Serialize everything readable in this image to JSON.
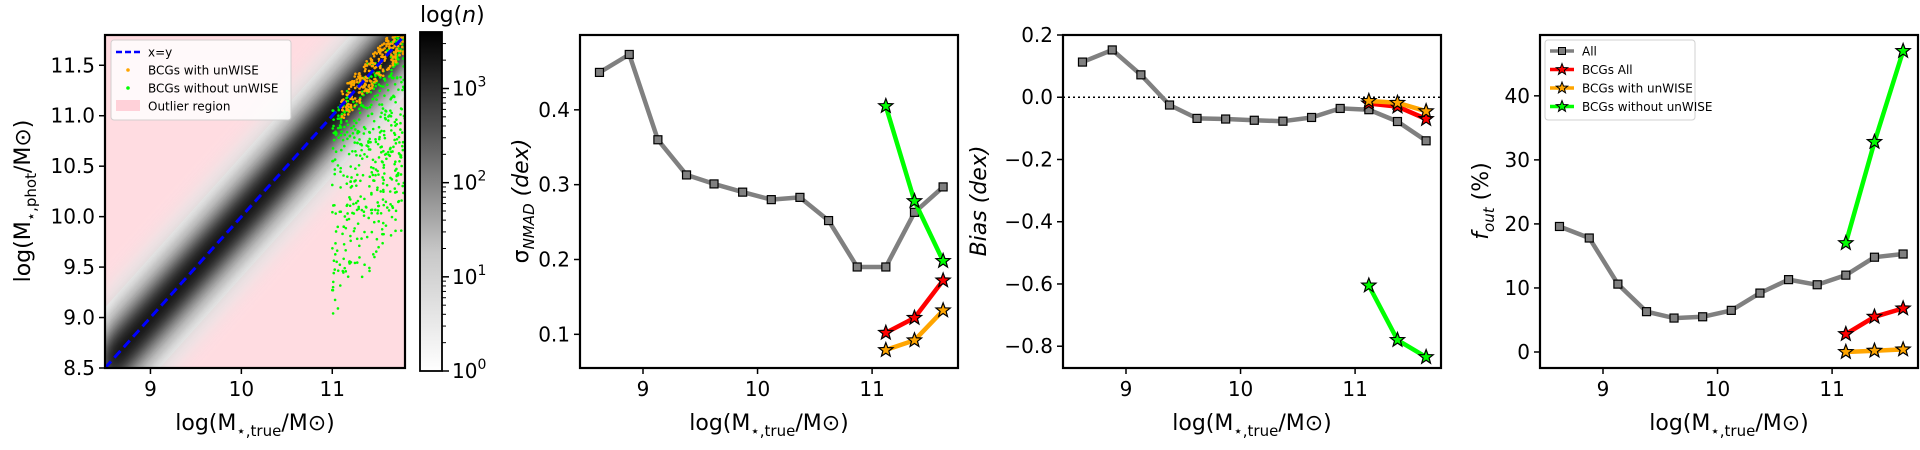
{
  "chart_data": [
    {
      "type": "heatmap",
      "title": "",
      "xlabel": "log(M⋆,true/M⊙)",
      "ylabel": "log(M⋆,phot/M⊙)",
      "xlim": [
        8.5,
        11.8
      ],
      "ylim": [
        8.5,
        11.8
      ],
      "xticks": [
        "9",
        "10",
        "11"
      ],
      "yticks": [
        "8.5",
        "9.0",
        "9.5",
        "10.0",
        "10.5",
        "11.0",
        "11.5"
      ],
      "colorbar": {
        "label": "log(n)",
        "ticks": [
          "10^0",
          "10^1",
          "10^2",
          "10^3"
        ],
        "range": [
          0,
          3.6
        ]
      },
      "legend_position": "upper-left",
      "legend": [
        {
          "label": "x=y",
          "kind": "dashed-line",
          "color": "#0000ff"
        },
        {
          "label": "BCGs with unWISE",
          "kind": "dot",
          "color": "#ffa500"
        },
        {
          "label": "BCGs without unWISE",
          "kind": "dot",
          "color": "#00ff00"
        },
        {
          "label": "Outlier region",
          "kind": "patch",
          "color": "#ffc0cb"
        }
      ]
    },
    {
      "type": "line",
      "xlabel": "log(M⋆,true/M⊙)",
      "ylabel": "σNMAD (dex)",
      "xlim": [
        8.45,
        11.75
      ],
      "ylim": [
        0.055,
        0.5
      ],
      "xticks": [
        "9",
        "10",
        "11"
      ],
      "yticks": [
        "0.1",
        "0.2",
        "0.3",
        "0.4"
      ],
      "series": [
        {
          "name": "All",
          "color": "#808080",
          "marker": "square",
          "x": [
            8.62,
            8.88,
            9.13,
            9.38,
            9.62,
            9.87,
            10.12,
            10.37,
            10.62,
            10.87,
            11.12,
            11.37,
            11.62
          ],
          "y": [
            0.45,
            0.474,
            0.36,
            0.313,
            0.301,
            0.29,
            0.28,
            0.283,
            0.252,
            0.19,
            0.19,
            0.263,
            0.297
          ]
        },
        {
          "name": "BCGs without unWISE",
          "color": "#00ff00",
          "marker": "star",
          "x": [
            11.12,
            11.37,
            11.62
          ],
          "y": [
            0.405,
            0.278,
            0.198
          ]
        },
        {
          "name": "BCGs All",
          "color": "#ff0000",
          "marker": "star",
          "x": [
            11.12,
            11.37,
            11.62
          ],
          "y": [
            0.102,
            0.122,
            0.172
          ]
        },
        {
          "name": "BCGs with unWISE",
          "color": "#ffa500",
          "marker": "star",
          "x": [
            11.12,
            11.37,
            11.62
          ],
          "y": [
            0.079,
            0.092,
            0.132
          ]
        }
      ]
    },
    {
      "type": "line",
      "xlabel": "log(M⋆,true/M⊙)",
      "ylabel": "Bias (dex)",
      "xlim": [
        8.45,
        11.75
      ],
      "ylim": [
        -0.87,
        0.2
      ],
      "xticks": [
        "9",
        "10",
        "11"
      ],
      "yticks": [
        "0.2",
        "0.0",
        "−0.2",
        "−0.4",
        "−0.6",
        "−0.8"
      ],
      "reference_line_y": 0.0,
      "series": [
        {
          "name": "All",
          "color": "#808080",
          "marker": "square",
          "x": [
            8.62,
            8.88,
            9.13,
            9.38,
            9.62,
            9.87,
            10.12,
            10.37,
            10.62,
            10.87,
            11.12,
            11.37,
            11.62
          ],
          "y": [
            0.113,
            0.152,
            0.072,
            -0.025,
            -0.068,
            -0.07,
            -0.074,
            -0.077,
            -0.065,
            -0.036,
            -0.04,
            -0.078,
            -0.14
          ]
        },
        {
          "name": "BCGs without unWISE",
          "color": "#00ff00",
          "marker": "star",
          "x": [
            11.12,
            11.37,
            11.62
          ],
          "y": [
            -0.605,
            -0.78,
            -0.835
          ]
        },
        {
          "name": "BCGs All",
          "color": "#ff0000",
          "marker": "star",
          "x": [
            11.12,
            11.37,
            11.62
          ],
          "y": [
            -0.02,
            -0.03,
            -0.07
          ]
        },
        {
          "name": "BCGs with unWISE",
          "color": "#ffa500",
          "marker": "star",
          "x": [
            11.12,
            11.37,
            11.62
          ],
          "y": [
            -0.012,
            -0.018,
            -0.045
          ]
        }
      ]
    },
    {
      "type": "line",
      "xlabel": "log(M⋆,true/M⊙)",
      "ylabel": "fout (%)",
      "xlim": [
        8.45,
        11.75
      ],
      "ylim": [
        -2.5,
        49.5
      ],
      "xticks": [
        "9",
        "10",
        "11"
      ],
      "yticks": [
        "0",
        "10",
        "20",
        "30",
        "40"
      ],
      "legend_position": "upper-left",
      "legend": [
        {
          "label": "All",
          "color": "#808080",
          "marker": "square"
        },
        {
          "label": "BCGs All",
          "color": "#ff0000",
          "marker": "star"
        },
        {
          "label": "BCGs with unWISE",
          "color": "#ffa500",
          "marker": "star"
        },
        {
          "label": "BCGs without unWISE",
          "color": "#00ff00",
          "marker": "star"
        }
      ],
      "series": [
        {
          "name": "All",
          "color": "#808080",
          "marker": "square",
          "x": [
            8.62,
            8.88,
            9.13,
            9.38,
            9.62,
            9.87,
            10.12,
            10.37,
            10.62,
            10.87,
            11.12,
            11.37,
            11.62
          ],
          "y": [
            19.6,
            17.8,
            10.6,
            6.3,
            5.3,
            5.5,
            6.5,
            9.2,
            11.3,
            10.5,
            12.0,
            14.8,
            15.3
          ]
        },
        {
          "name": "BCGs without unWISE",
          "color": "#00ff00",
          "marker": "star",
          "x": [
            11.12,
            11.37,
            11.62
          ],
          "y": [
            17.0,
            32.8,
            47.0
          ]
        },
        {
          "name": "BCGs All",
          "color": "#ff0000",
          "marker": "star",
          "x": [
            11.12,
            11.37,
            11.62
          ],
          "y": [
            2.8,
            5.5,
            6.8
          ]
        },
        {
          "name": "BCGs with unWISE",
          "color": "#ffa500",
          "marker": "star",
          "x": [
            11.12,
            11.37,
            11.62
          ],
          "y": [
            0.0,
            0.2,
            0.4
          ]
        }
      ]
    }
  ]
}
